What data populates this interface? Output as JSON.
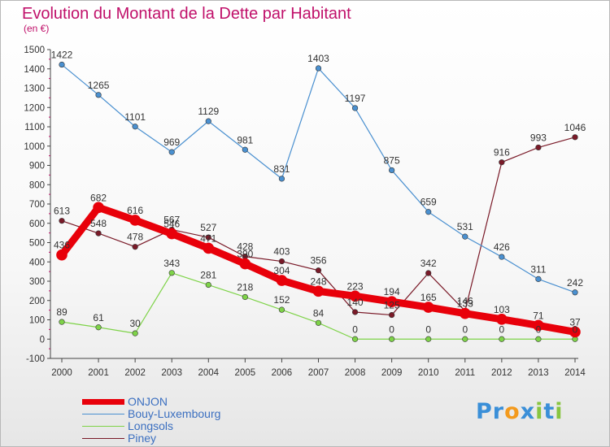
{
  "chart_data": {
    "type": "line",
    "title": "Evolution du Montant de la Dette par Habitant",
    "subtitle": "(en €)",
    "x": [
      "2000",
      "2001",
      "2002",
      "2003",
      "2004",
      "2005",
      "2006",
      "2007",
      "2008",
      "2009",
      "2010",
      "2011",
      "2012",
      "2013",
      "2014"
    ],
    "yticks": [
      -100,
      0,
      100,
      200,
      300,
      400,
      500,
      600,
      700,
      800,
      900,
      1000,
      1100,
      1200,
      1300,
      1400,
      1500
    ],
    "ylim": [
      -100,
      1500
    ],
    "grid": false,
    "legend_position": "bottom-left",
    "series": [
      {
        "name": "ONJON",
        "color": "#e8000a",
        "values": [
          436,
          682,
          616,
          546,
          471,
          390,
          304,
          248,
          223,
          194,
          165,
          133,
          103,
          71,
          37
        ]
      },
      {
        "name": "Bouy-Luxembourg",
        "color": "#4a90d0",
        "values": [
          1422,
          1265,
          1101,
          969,
          1129,
          981,
          831,
          1403,
          1197,
          875,
          659,
          531,
          426,
          311,
          242
        ]
      },
      {
        "name": "Longsols",
        "color": "#7ed348",
        "values": [
          89,
          61,
          30,
          343,
          281,
          218,
          152,
          84,
          0,
          0,
          0,
          0,
          0,
          0,
          0
        ]
      },
      {
        "name": "Piney",
        "color": "#7a1a28",
        "values": [
          613,
          548,
          478,
          567,
          527,
          428,
          403,
          356,
          140,
          125,
          342,
          146,
          916,
          993,
          1046
        ]
      }
    ]
  },
  "logo": {
    "text": "Proxiti",
    "letters": [
      "P",
      "r",
      "o",
      "x",
      "i",
      "t",
      "i"
    ],
    "colors": [
      "#3a8fd8",
      "#3a8fd8",
      "#f39a1d",
      "#3a8fd8",
      "#88c540",
      "#3a8fd8",
      "#88c540"
    ]
  }
}
